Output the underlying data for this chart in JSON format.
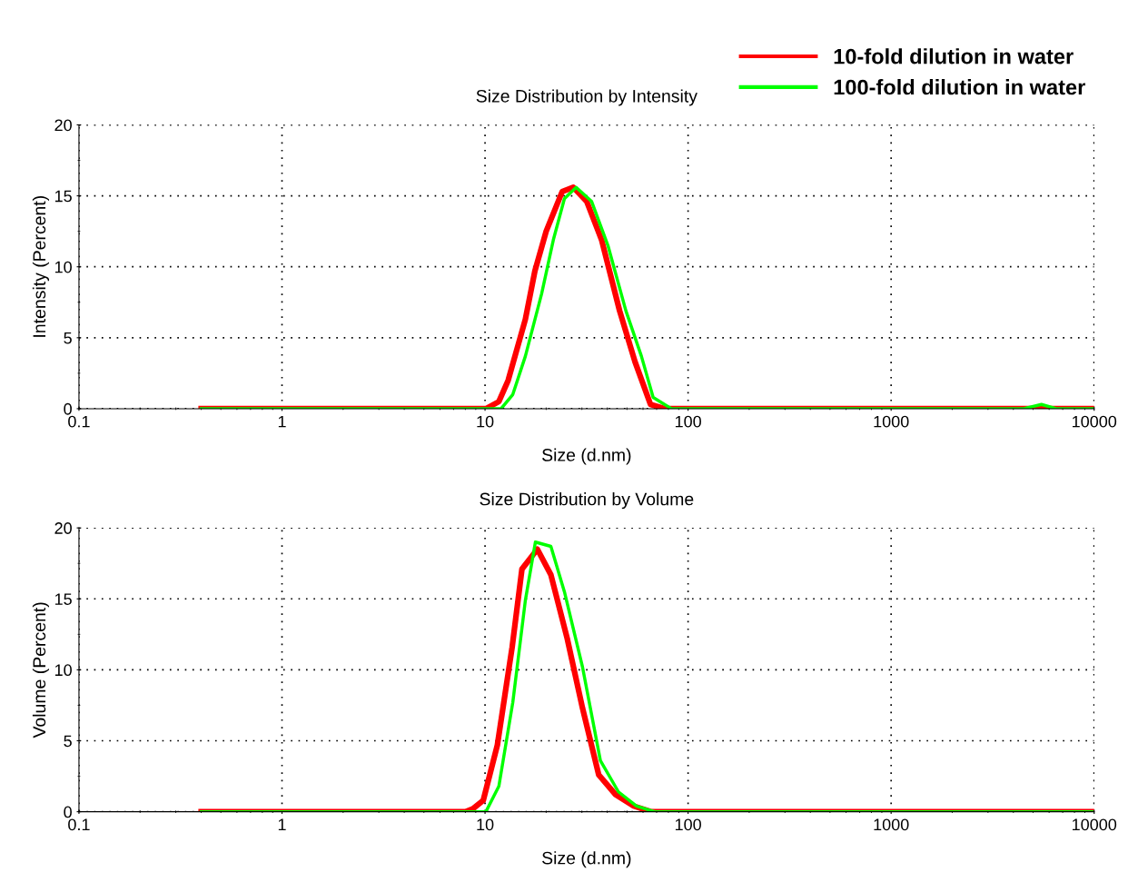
{
  "chart_data": [
    {
      "type": "line",
      "title": "Size Distribution by Intensity",
      "xlabel": "Size (d.nm)",
      "ylabel": "Intensity (Percent)",
      "log": "x",
      "grid": true,
      "legend": "top right",
      "line_style": "solid",
      "marker": "none",
      "xlim": [
        0.1,
        10000
      ],
      "xticks": [
        0.1,
        1,
        10,
        100,
        1000,
        10000
      ],
      "ylim": [
        0,
        20
      ],
      "yticks": [
        0,
        5,
        10,
        15,
        20
      ],
      "series": [
        {
          "name": "10-fold dilution in water",
          "color": "#ff0000",
          "x": [
            0.4,
            10.1,
            11.7,
            13,
            15.8,
            17.6,
            20,
            24,
            27.2,
            31.7,
            37.5,
            46,
            54.8,
            65.3,
            77,
            10000
          ],
          "values": [
            0,
            0,
            0.5,
            2,
            6.3,
            9.7,
            12.5,
            15.3,
            15.6,
            14.6,
            11.9,
            6.9,
            3.3,
            0.3,
            0,
            0
          ]
        },
        {
          "name": "100-fold dilution in water",
          "color": "#00ff00",
          "x": [
            0.4,
            12,
            13.7,
            15.8,
            19,
            21.7,
            24.6,
            28.1,
            33.5,
            40.3,
            49.4,
            58.9,
            67.3,
            82.8,
            4500,
            5500,
            6500,
            10000
          ],
          "values": [
            0,
            0,
            1,
            3.7,
            8.1,
            11.9,
            14.8,
            15.6,
            14.6,
            11.5,
            6.9,
            3.7,
            0.8,
            0,
            0,
            0.3,
            0,
            0
          ]
        }
      ]
    },
    {
      "type": "line",
      "title": "Size Distribution by Volume",
      "xlabel": "Size (d.nm)",
      "ylabel": "Volume (Percent)",
      "log": "x",
      "grid": true,
      "line_style": "solid",
      "marker": "none",
      "xlim": [
        0.1,
        10000
      ],
      "xticks": [
        0.1,
        1,
        10,
        100,
        1000,
        10000
      ],
      "ylim": [
        0,
        20
      ],
      "yticks": [
        0,
        5,
        10,
        15,
        20
      ],
      "series": [
        {
          "color": "#ff0000",
          "x": [
            0.4,
            8.0,
            8.7,
            9.8,
            11.5,
            13.6,
            15.2,
            18.1,
            21.1,
            25.4,
            30.2,
            36.3,
            44,
            54,
            66,
            10000
          ],
          "values": [
            0,
            0,
            0.2,
            0.8,
            4.7,
            11.6,
            17.1,
            18.5,
            16.7,
            12.2,
            7.3,
            2.6,
            1.2,
            0.4,
            0,
            0
          ]
        },
        {
          "color": "#00ff00",
          "x": [
            0.4,
            10.1,
            11.7,
            13.7,
            15.8,
            17.7,
            21.1,
            24.6,
            30.2,
            37,
            45.4,
            55.7,
            68.4,
            10000
          ],
          "values": [
            0,
            0,
            1.8,
            7.7,
            14.9,
            19,
            18.7,
            15.5,
            10.2,
            3.6,
            1.4,
            0.4,
            0,
            0
          ]
        }
      ]
    }
  ]
}
